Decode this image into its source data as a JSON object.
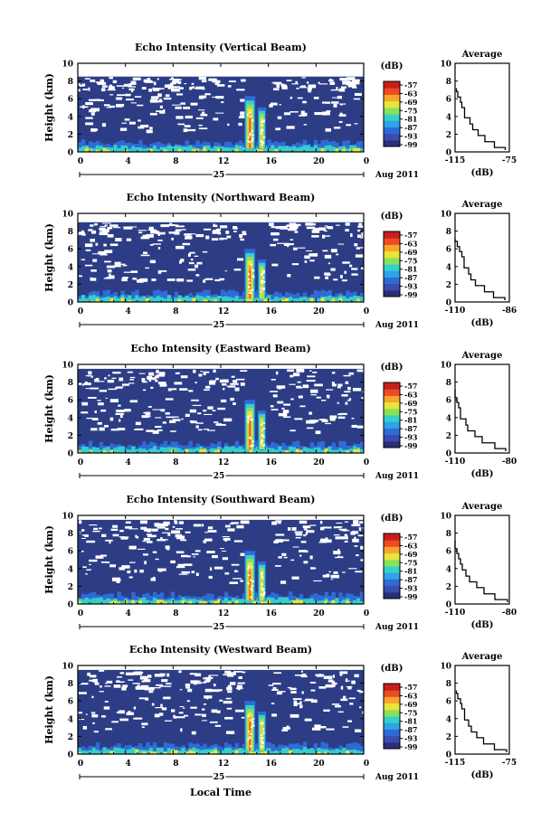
{
  "figure": {
    "xlabel": "Local Time",
    "date_label": "Aug 2011",
    "day_label": "25"
  },
  "colors": {
    "background_echo": "#2c3d86",
    "scale": [
      "#2a2f7a",
      "#3a4cb0",
      "#2f6bd6",
      "#2fa3e6",
      "#36d0c8",
      "#8ae05a",
      "#e8e63a",
      "#f7a52c",
      "#ee4b22",
      "#c81e1e"
    ]
  },
  "chart_data": [
    {
      "type": "heatmap",
      "title": "Echo Intensity (Vertical Beam)",
      "ylabel": "Height (km)",
      "xticks": [
        "0",
        "4",
        "8",
        "12",
        "16",
        "20",
        "0"
      ],
      "xlim": [
        0,
        24
      ],
      "yticks": [
        "0",
        "2",
        "4",
        "6",
        "8",
        "10"
      ],
      "ylim": [
        0,
        10
      ],
      "colorbar": {
        "unit": "(dB)",
        "ticks": [
          "-57",
          "-63",
          "-69",
          "-75",
          "-81",
          "-87",
          "-93",
          "-99"
        ]
      },
      "profile": {
        "title": "Average",
        "xlabel": "(dB)",
        "xticks": [
          "-115",
          "-75"
        ],
        "xlim": [
          -115,
          -75
        ],
        "yticks": [
          "0",
          "2",
          "4",
          "6",
          "8",
          "10"
        ],
        "heights": [
          0.2,
          0.8,
          1.5,
          2.2,
          2.8,
          3.5,
          4.2,
          4.8,
          5.2,
          6.0,
          6.4,
          7.2
        ],
        "values": [
          -78,
          -86,
          -93,
          -98,
          -102,
          -104,
          -108,
          -108,
          -110,
          -111,
          -113,
          -114
        ]
      },
      "echo_top_km": 8.5,
      "convection": {
        "start_h": 14.0,
        "end_h": 15.8,
        "top_km": 6.3
      }
    },
    {
      "type": "heatmap",
      "title": "Echo Intensity (Northward Beam)",
      "ylabel": "Height (km)",
      "xticks": [
        "0",
        "4",
        "8",
        "12",
        "16",
        "20",
        "0"
      ],
      "xlim": [
        0,
        24
      ],
      "yticks": [
        "0",
        "2",
        "4",
        "6",
        "8",
        "10"
      ],
      "ylim": [
        0,
        10
      ],
      "colorbar": {
        "unit": "(dB)",
        "ticks": [
          "-57",
          "-63",
          "-69",
          "-75",
          "-81",
          "-87",
          "-93",
          "-99"
        ]
      },
      "profile": {
        "title": "Average",
        "xlabel": "(dB)",
        "xticks": [
          "-110",
          "-86"
        ],
        "xlim": [
          -110,
          -86
        ],
        "yticks": [
          "0",
          "2",
          "4",
          "6",
          "8",
          "10"
        ],
        "heights": [
          0.2,
          0.8,
          1.5,
          2.2,
          2.8,
          3.5,
          4.2,
          4.8,
          5.4,
          6.0,
          6.5,
          7.2
        ],
        "values": [
          -88,
          -93,
          -97,
          -101,
          -103,
          -104,
          -106,
          -106,
          -107,
          -108,
          -109,
          -110
        ]
      },
      "echo_top_km": 9.0,
      "convection": {
        "start_h": 14.0,
        "end_h": 15.8,
        "top_km": 6.0
      }
    },
    {
      "type": "heatmap",
      "title": "Echo Intensity (Eastward Beam)",
      "ylabel": "Height (km)",
      "xticks": [
        "0",
        "4",
        "8",
        "12",
        "16",
        "20",
        "0"
      ],
      "xlim": [
        0,
        24
      ],
      "yticks": [
        "0",
        "2",
        "4",
        "6",
        "8",
        "10"
      ],
      "ylim": [
        0,
        10
      ],
      "colorbar": {
        "unit": "(dB)",
        "ticks": [
          "-57",
          "-63",
          "-69",
          "-75",
          "-81",
          "-87",
          "-93",
          "-99"
        ]
      },
      "profile": {
        "title": "Average",
        "xlabel": "(dB)",
        "xticks": [
          "-110",
          "-80"
        ],
        "xlim": [
          -110,
          -80
        ],
        "yticks": [
          "0",
          "2",
          "4",
          "6",
          "8",
          "10"
        ],
        "heights": [
          0.2,
          0.8,
          1.5,
          2.2,
          2.8,
          3.5,
          4.2,
          4.8,
          5.4,
          6.0,
          6.5,
          7.2
        ],
        "values": [
          -82,
          -88,
          -95,
          -99,
          -103,
          -104,
          -107,
          -107,
          -108,
          -109,
          -110,
          -110
        ]
      },
      "echo_top_km": 9.5,
      "convection": {
        "start_h": 14.0,
        "end_h": 15.8,
        "top_km": 6.0
      }
    },
    {
      "type": "heatmap",
      "title": "Echo Intensity (Southward Beam)",
      "ylabel": "Height (km)",
      "xticks": [
        "0",
        "4",
        "8",
        "12",
        "16",
        "20",
        "0"
      ],
      "xlim": [
        0,
        24
      ],
      "yticks": [
        "0",
        "2",
        "4",
        "6",
        "8",
        "10"
      ],
      "ylim": [
        0,
        10
      ],
      "colorbar": {
        "unit": "(dB)",
        "ticks": [
          "-57",
          "-63",
          "-69",
          "-75",
          "-81",
          "-87",
          "-93",
          "-99"
        ]
      },
      "profile": {
        "title": "Average",
        "xlabel": "(dB)",
        "xticks": [
          "-110",
          "-80"
        ],
        "xlim": [
          -110,
          -80
        ],
        "yticks": [
          "0",
          "2",
          "4",
          "6",
          "8",
          "10"
        ],
        "heights": [
          0.2,
          0.8,
          1.5,
          2.2,
          2.8,
          3.5,
          4.2,
          4.8,
          5.4,
          6.0,
          6.5,
          7.2
        ],
        "values": [
          -81,
          -88,
          -94,
          -98,
          -102,
          -104,
          -106,
          -107,
          -108,
          -109,
          -110,
          -110
        ]
      },
      "echo_top_km": 9.5,
      "convection": {
        "start_h": 14.0,
        "end_h": 15.8,
        "top_km": 6.0
      }
    },
    {
      "type": "heatmap",
      "title": "Echo Intensity (Westward Beam)",
      "ylabel": "Height (km)",
      "xticks": [
        "0",
        "4",
        "8",
        "12",
        "16",
        "20",
        "0"
      ],
      "xlim": [
        0,
        24
      ],
      "yticks": [
        "0",
        "2",
        "4",
        "6",
        "8",
        "10"
      ],
      "ylim": [
        0,
        10
      ],
      "colorbar": {
        "unit": "(dB)",
        "ticks": [
          "-57",
          "-63",
          "-69",
          "-75",
          "-81",
          "-87",
          "-93",
          "-99"
        ]
      },
      "profile": {
        "title": "Average",
        "xlabel": "(dB)",
        "xticks": [
          "-115",
          "-75"
        ],
        "xlim": [
          -115,
          -75
        ],
        "yticks": [
          "0",
          "2",
          "4",
          "6",
          "8",
          "10"
        ],
        "heights": [
          0.2,
          0.8,
          1.5,
          2.2,
          2.8,
          3.5,
          4.2,
          4.8,
          5.4,
          6.0,
          6.5,
          7.2
        ],
        "values": [
          -77,
          -86,
          -94,
          -99,
          -103,
          -105,
          -108,
          -108,
          -110,
          -111,
          -113,
          -114
        ]
      },
      "echo_top_km": 9.5,
      "convection": {
        "start_h": 14.0,
        "end_h": 15.8,
        "top_km": 6.0
      }
    }
  ]
}
